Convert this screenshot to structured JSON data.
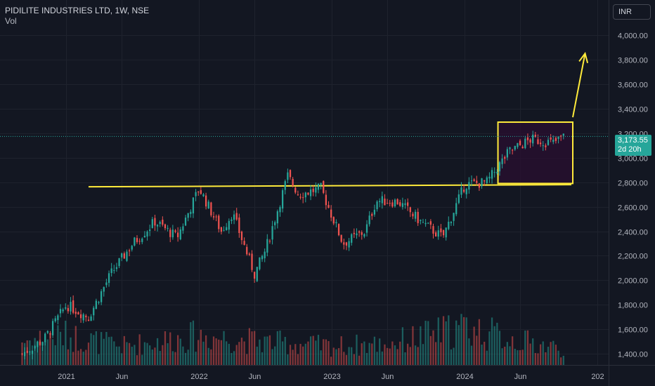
{
  "header": {
    "title": "PIDILITE INDUSTRIES LTD, 1W, NSE",
    "subtitle": "Vol"
  },
  "currency_label": "INR",
  "last_price": {
    "value": "3,173.55",
    "countdown": "2d 20h"
  },
  "colors": {
    "background": "#131722",
    "up": "#26a69a",
    "down": "#ef5350",
    "annotation": "#ffeb3b",
    "box_fill": "#2a0f30"
  },
  "chart_data": {
    "type": "candlestick",
    "y_axis": {
      "ticks": [
        1400,
        1600,
        1800,
        2000,
        2200,
        2400,
        2600,
        2800,
        3000,
        3200,
        3400,
        3600,
        3800,
        4000
      ],
      "tick_labels": [
        "1,400.00",
        "1,600.00",
        "1,800.00",
        "2,000.00",
        "2,200.00",
        "2,400.00",
        "2,600.00",
        "2,800.00",
        "3,000.00",
        "3,200.00",
        "3,400.00",
        "3,600.00",
        "3,800.00",
        "4,000.00"
      ],
      "range": [
        1310,
        4080
      ]
    },
    "x_axis": {
      "tick_labels": [
        "2021",
        "Jun",
        "2022",
        "Jun",
        "2023",
        "Jun",
        "2024",
        "Jun",
        "202"
      ],
      "tick_dates": [
        "2021-01",
        "2021-06",
        "2022-01",
        "2022-06",
        "2023-01",
        "2023-06",
        "2024-01",
        "2024-06",
        "2025-01"
      ],
      "range": [
        "2020-07",
        "2025-02"
      ]
    },
    "price_path": [
      [
        "2020-09",
        1400
      ],
      [
        "2020-11",
        1520
      ],
      [
        "2021-01",
        1800
      ],
      [
        "2021-03",
        1700
      ],
      [
        "2021-05",
        2050
      ],
      [
        "2021-07",
        2300
      ],
      [
        "2021-09",
        2480
      ],
      [
        "2021-11",
        2350
      ],
      [
        "2022-01",
        2750
      ],
      [
        "2022-03",
        2400
      ],
      [
        "2022-04",
        2550
      ],
      [
        "2022-06",
        2050
      ],
      [
        "2022-07",
        2250
      ],
      [
        "2022-09",
        2850
      ],
      [
        "2022-10",
        2700
      ],
      [
        "2022-12",
        2750
      ],
      [
        "2023-02",
        2300
      ],
      [
        "2023-04",
        2400
      ],
      [
        "2023-05",
        2650
      ],
      [
        "2023-07",
        2640
      ],
      [
        "2023-09",
        2480
      ],
      [
        "2023-11",
        2350
      ],
      [
        "2024-01",
        2780
      ],
      [
        "2024-03",
        2800
      ],
      [
        "2024-05",
        3050
      ],
      [
        "2024-07",
        3150
      ],
      [
        "2024-09",
        3120
      ],
      [
        "2024-10",
        3173.55
      ]
    ],
    "volume_profile": [
      [
        "2020-09",
        0.45
      ],
      [
        "2021-01",
        0.55
      ],
      [
        "2021-06",
        0.35
      ],
      [
        "2022-01",
        0.55
      ],
      [
        "2022-06",
        0.45
      ],
      [
        "2023-01",
        0.35
      ],
      [
        "2023-06",
        0.4
      ],
      [
        "2024-01",
        0.7
      ],
      [
        "2024-06",
        0.45
      ],
      [
        "2024-10",
        0.3
      ]
    ],
    "annotations": {
      "resistance_line": {
        "price": 2780,
        "from": "2021-03",
        "to": "2024-10"
      },
      "consolidation_box": {
        "from": "2024-04",
        "to": "2024-10",
        "low": 2790,
        "high": 3290
      },
      "projection_arrow": {
        "from": [
          "2024-10",
          3330
        ],
        "to": [
          "2024-12",
          3850
        ]
      }
    },
    "last_price_line": 3173.55
  }
}
